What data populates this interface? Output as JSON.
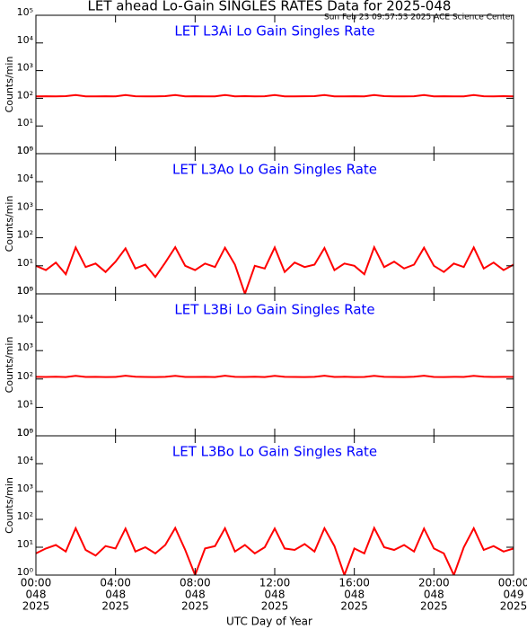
{
  "title": "LET ahead Lo-Gain SINGLES RATES Data for 2025-048",
  "timestamp": "Sun Feb 23 09:57:53 2025 ACE Science Center",
  "x_axis": {
    "label": "UTC Day of Year",
    "lim": [
      0,
      24
    ],
    "ticks": [
      {
        "value": 0,
        "label": [
          "00:00",
          "048",
          "2025"
        ]
      },
      {
        "value": 4,
        "label": [
          "04:00",
          "048",
          "2025"
        ]
      },
      {
        "value": 8,
        "label": [
          "08:00",
          "048",
          "2025"
        ]
      },
      {
        "value": 12,
        "label": [
          "12:00",
          "048",
          "2025"
        ]
      },
      {
        "value": 16,
        "label": [
          "16:00",
          "048",
          "2025"
        ]
      },
      {
        "value": 20,
        "label": [
          "20:00",
          "048",
          "2025"
        ]
      },
      {
        "value": 24,
        "label": [
          "00:00",
          "049",
          "2025"
        ]
      }
    ]
  },
  "chart_data": [
    {
      "type": "line",
      "title": "LET L3Ai Lo Gain Singles Rate",
      "ylabel": "Counts/min",
      "log_y": true,
      "title_color": "#0000ff",
      "x": [
        0,
        0.5,
        1,
        1.5,
        2,
        2.5,
        3,
        3.5,
        4,
        4.5,
        5,
        5.5,
        6,
        6.5,
        7,
        7.5,
        8,
        8.5,
        9,
        9.5,
        10,
        10.5,
        11,
        11.5,
        12,
        12.5,
        13,
        13.5,
        14,
        14.5,
        15,
        15.5,
        16,
        16.5,
        17,
        17.5,
        18,
        18.5,
        19,
        19.5,
        20,
        20.5,
        21,
        21.5,
        22,
        22.5,
        23,
        23.5,
        24
      ],
      "series": [
        {
          "color": "#ff0000",
          "values": [
            118,
            119,
            117,
            120,
            131,
            118,
            117,
            119,
            118,
            132,
            119,
            118,
            117,
            120,
            131,
            118,
            119,
            117,
            118,
            132,
            118,
            120,
            117,
            119,
            131,
            118,
            117,
            119,
            120,
            132,
            118,
            117,
            119,
            118,
            131,
            120,
            118,
            117,
            119,
            132,
            118,
            119,
            117,
            118,
            131,
            119,
            118,
            120,
            118
          ]
        }
      ],
      "ylim": [
        1,
        100000
      ],
      "yticks": [
        {
          "value": 1,
          "label": "10⁰"
        },
        {
          "value": 10,
          "label": "10¹"
        },
        {
          "value": 100,
          "label": "10²"
        },
        {
          "value": 1000,
          "label": "10³"
        },
        {
          "value": 10000,
          "label": "10⁴"
        },
        {
          "value": 100000,
          "label": "10⁵"
        }
      ]
    },
    {
      "type": "line",
      "title": "LET L3Ao Lo Gain Singles Rate",
      "ylabel": "Counts/min",
      "log_y": true,
      "title_color": "#0000ff",
      "x": [
        0,
        0.5,
        1,
        1.5,
        2,
        2.5,
        3,
        3.5,
        4,
        4.5,
        5,
        5.5,
        6,
        6.5,
        7,
        7.5,
        8,
        8.5,
        9,
        9.5,
        10,
        10.5,
        11,
        11.5,
        12,
        12.5,
        13,
        13.5,
        14,
        14.5,
        15,
        15.5,
        16,
        16.5,
        17,
        17.5,
        18,
        18.5,
        19,
        19.5,
        20,
        20.5,
        21,
        21.5,
        22,
        22.5,
        23,
        23.5,
        24
      ],
      "series": [
        {
          "color": "#ff0000",
          "values": [
            10,
            7,
            13,
            5,
            45,
            9,
            12,
            6,
            14,
            42,
            8,
            11,
            4,
            13,
            46,
            10,
            7,
            12,
            9,
            44,
            11,
            1,
            10,
            8,
            45,
            6,
            13,
            9,
            11,
            43,
            7,
            12,
            10,
            5,
            46,
            9,
            14,
            8,
            11,
            44,
            10,
            6,
            12,
            9,
            45,
            8,
            13,
            7,
            11
          ]
        }
      ],
      "ylim": [
        1,
        100000
      ],
      "yticks": [
        {
          "value": 1,
          "label": "10⁰"
        },
        {
          "value": 10,
          "label": "10¹"
        },
        {
          "value": 100,
          "label": "10²"
        },
        {
          "value": 1000,
          "label": "10³"
        },
        {
          "value": 10000,
          "label": "10⁴"
        },
        {
          "value": 100000,
          "label": "10⁵"
        }
      ]
    },
    {
      "type": "line",
      "title": "LET L3Bi Lo Gain Singles Rate",
      "ylabel": "Counts/min",
      "log_y": true,
      "title_color": "#0000ff",
      "x": [
        0,
        0.5,
        1,
        1.5,
        2,
        2.5,
        3,
        3.5,
        4,
        4.5,
        5,
        5.5,
        6,
        6.5,
        7,
        7.5,
        8,
        8.5,
        9,
        9.5,
        10,
        10.5,
        11,
        11.5,
        12,
        12.5,
        13,
        13.5,
        14,
        14.5,
        15,
        15.5,
        16,
        16.5,
        17,
        17.5,
        18,
        18.5,
        19,
        19.5,
        20,
        20.5,
        21,
        21.5,
        22,
        22.5,
        23,
        23.5,
        24
      ],
      "series": [
        {
          "color": "#ff0000",
          "values": [
            119,
            118,
            120,
            117,
            130,
            118,
            119,
            117,
            118,
            131,
            120,
            118,
            117,
            119,
            130,
            118,
            118,
            119,
            117,
            131,
            119,
            118,
            120,
            117,
            130,
            119,
            118,
            117,
            119,
            131,
            118,
            120,
            117,
            118,
            130,
            119,
            118,
            117,
            120,
            131,
            118,
            117,
            119,
            118,
            130,
            120,
            118,
            119,
            118
          ]
        }
      ],
      "ylim": [
        1,
        100000
      ],
      "yticks": [
        {
          "value": 1,
          "label": "10⁰"
        },
        {
          "value": 10,
          "label": "10¹"
        },
        {
          "value": 100,
          "label": "10²"
        },
        {
          "value": 1000,
          "label": "10³"
        },
        {
          "value": 10000,
          "label": "10⁴"
        },
        {
          "value": 100000,
          "label": "10⁵"
        }
      ]
    },
    {
      "type": "line",
      "title": "LET L3Bo Lo Gain Singles Rate",
      "ylabel": "Counts/min",
      "log_y": true,
      "title_color": "#0000ff",
      "x": [
        0,
        0.5,
        1,
        1.5,
        2,
        2.5,
        3,
        3.5,
        4,
        4.5,
        5,
        5.5,
        6,
        6.5,
        7,
        7.5,
        8,
        8.5,
        9,
        9.5,
        10,
        10.5,
        11,
        11.5,
        12,
        12.5,
        13,
        13.5,
        14,
        14.5,
        15,
        15.5,
        16,
        16.5,
        17,
        17.5,
        18,
        18.5,
        19,
        19.5,
        20,
        20.5,
        21,
        21.5,
        22,
        22.5,
        23,
        23.5,
        24
      ],
      "series": [
        {
          "color": "#ff0000",
          "values": [
            6,
            9,
            12,
            7,
            48,
            8,
            5,
            11,
            9,
            47,
            7,
            10,
            6,
            12,
            49,
            8,
            1,
            9,
            11,
            48,
            7,
            12,
            6,
            10,
            47,
            9,
            8,
            13,
            7,
            48,
            11,
            1,
            9,
            6,
            49,
            10,
            8,
            12,
            7,
            47,
            9,
            6,
            1,
            10,
            48,
            8,
            11,
            7,
            9
          ]
        }
      ],
      "ylim": [
        1,
        100000
      ],
      "yticks": [
        {
          "value": 1,
          "label": "10⁰"
        },
        {
          "value": 10,
          "label": "10¹"
        },
        {
          "value": 100,
          "label": "10²"
        },
        {
          "value": 1000,
          "label": "10³"
        },
        {
          "value": 10000,
          "label": "10⁴"
        },
        {
          "value": 100000,
          "label": "10⁵"
        }
      ]
    }
  ]
}
